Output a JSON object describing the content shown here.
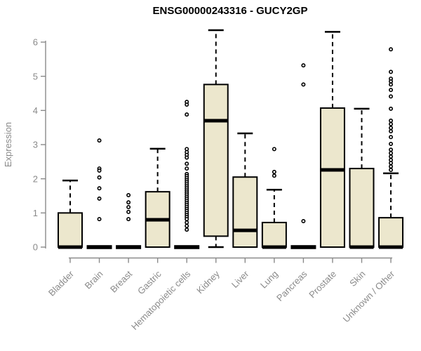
{
  "title": "ENSG00000243316 - GUCY2GP",
  "chart_data": {
    "type": "boxplot",
    "title": "ENSG00000243316 - GUCY2GP",
    "xlabel": "",
    "ylabel": "Expression",
    "ylim": [
      0,
      6.4
    ],
    "yticks": [
      0,
      1,
      2,
      3,
      4,
      5,
      6
    ],
    "grid": false,
    "legend": null,
    "categories": [
      "Bladder",
      "Brain",
      "Breast",
      "Gastric",
      "Hematopoietic cells",
      "Kidney",
      "Liver",
      "Lung",
      "Pancreas",
      "Prostate",
      "Skin",
      "Unknown / Other"
    ],
    "series": [
      {
        "category": "Bladder",
        "min": 0,
        "q1": 0,
        "median": 0,
        "q3": 1.0,
        "max": 1.95,
        "outliers": []
      },
      {
        "category": "Brain",
        "min": 0,
        "q1": 0,
        "median": 0,
        "q3": 0,
        "max": 0,
        "outliers": [
          3.12,
          2.3,
          2.24,
          2.04,
          1.72,
          1.42,
          0.82
        ]
      },
      {
        "category": "Breast",
        "min": 0,
        "q1": 0,
        "median": 0,
        "q3": 0,
        "max": 0,
        "outliers": [
          1.52,
          1.31,
          1.17,
          1.03,
          0.82
        ]
      },
      {
        "category": "Gastric",
        "min": 0,
        "q1": 0,
        "median": 0.8,
        "q3": 1.62,
        "max": 2.88,
        "outliers": []
      },
      {
        "category": "Hematopoietic cells",
        "min": 0,
        "q1": 0,
        "median": 0,
        "q3": 0,
        "max": 0,
        "outliers": [
          4.25,
          4.17,
          3.88,
          2.87,
          2.78,
          2.7,
          2.62,
          2.44,
          2.3,
          2.14,
          2.08,
          2.02,
          1.96,
          1.9,
          1.84,
          1.78,
          1.72,
          1.66,
          1.6,
          1.54,
          1.48,
          1.42,
          1.36,
          1.3,
          1.24,
          1.18,
          1.12,
          1.06,
          1.0,
          0.94,
          0.88,
          0.82,
          0.72,
          0.62,
          0.51
        ]
      },
      {
        "category": "Kidney",
        "min": 0,
        "q1": 0.32,
        "median": 3.7,
        "q3": 4.76,
        "max": 6.35,
        "outliers": []
      },
      {
        "category": "Liver",
        "min": 0,
        "q1": 0,
        "median": 0.49,
        "q3": 2.05,
        "max": 3.33,
        "outliers": []
      },
      {
        "category": "Lung",
        "min": 0,
        "q1": 0,
        "median": 0,
        "q3": 0.72,
        "max": 1.68,
        "outliers": [
          2.87,
          2.2,
          2.09
        ]
      },
      {
        "category": "Pancreas",
        "min": 0,
        "q1": 0,
        "median": 0,
        "q3": 0,
        "max": 0,
        "outliers": [
          5.32,
          4.76,
          0.76
        ]
      },
      {
        "category": "Prostate",
        "min": 0,
        "q1": 0,
        "median": 2.26,
        "q3": 4.07,
        "max": 6.3,
        "outliers": []
      },
      {
        "category": "Skin",
        "min": 0,
        "q1": 0,
        "median": 0,
        "q3": 2.3,
        "max": 4.05,
        "outliers": []
      },
      {
        "category": "Unknown / Other",
        "min": 0,
        "q1": 0,
        "median": 0,
        "q3": 0.86,
        "max": 2.16,
        "outliers": [
          5.79,
          5.13,
          4.93,
          4.85,
          4.76,
          4.6,
          4.41,
          4.05,
          3.7,
          3.6,
          3.49,
          3.39,
          3.22,
          3.02,
          2.85,
          2.75,
          2.65,
          2.55,
          2.46,
          2.36,
          2.26
        ]
      }
    ],
    "colors": {
      "box_fill": "#ECE7CD",
      "box_border": "#000000",
      "median": "#000000",
      "whisker": "#000000",
      "outlier": "#000000",
      "axis": "#8a8a8a",
      "tick_label": "#8a8a8a",
      "title": "#000000",
      "background": "#ffffff"
    }
  }
}
